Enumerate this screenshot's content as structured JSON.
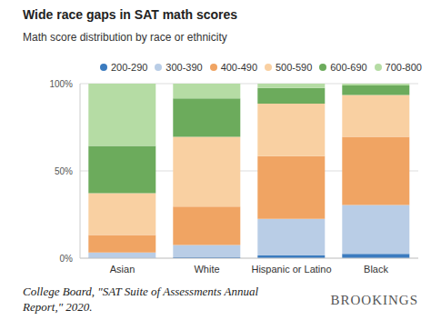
{
  "chart_data": {
    "type": "bar",
    "title": "Wide race gaps in SAT math scores",
    "subtitle": "Math score distribution by race or ethnicity",
    "source": "College Board, \"SAT Suite of Assessments Annual Report,\" 2020.",
    "annotations": [
      "BROOKINGS"
    ],
    "categories": [
      "Asian",
      "White",
      "Hispanic or Latino",
      "Black"
    ],
    "series": [
      {
        "name": "200-290",
        "color": "#3b7bbf",
        "values": [
          0.3,
          0.5,
          1.5,
          2.5
        ]
      },
      {
        "name": "300-390",
        "color": "#b9cde6",
        "values": [
          3,
          7,
          21,
          28
        ]
      },
      {
        "name": "400-490",
        "color": "#f0a463",
        "values": [
          10,
          22,
          36,
          39
        ]
      },
      {
        "name": "500-590",
        "color": "#f9d0a2",
        "values": [
          24,
          40,
          30,
          24
        ]
      },
      {
        "name": "600-690",
        "color": "#6cab5c",
        "values": [
          27,
          22,
          9,
          5.5
        ]
      },
      {
        "name": "700-800",
        "color": "#b5dca4",
        "values": [
          35.7,
          8.5,
          2.5,
          1
        ]
      }
    ],
    "ylim": [
      0,
      100
    ],
    "yticks": [
      {
        "value": 0,
        "label": "0%"
      },
      {
        "value": 50,
        "label": "50%"
      },
      {
        "value": 100,
        "label": "100%"
      }
    ],
    "stacked": true,
    "grid": true,
    "legend": "top"
  }
}
